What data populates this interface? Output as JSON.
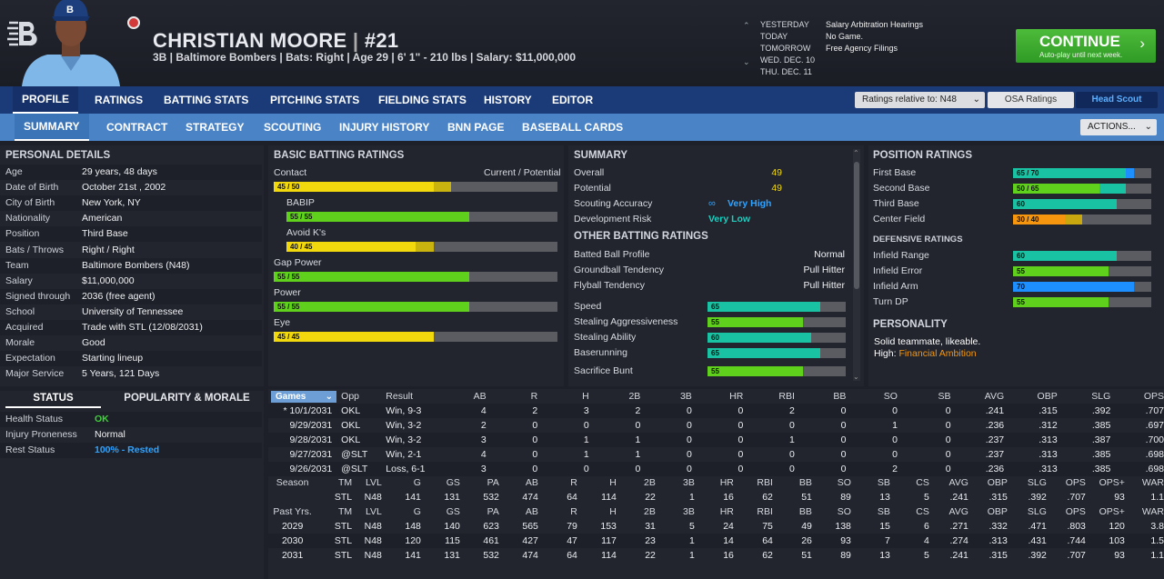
{
  "header": {
    "name": "CHRISTIAN MOORE",
    "sep": "|",
    "number": "#21",
    "subtitle": "3B | Baltimore Bombers  |  Bats: Right  |  Age 29  |  6' 1\" - 210 lbs  |  Salary: $11,000,000"
  },
  "calendar": [
    {
      "day": "YESTERDAY",
      "event": "Salary Arbitration Hearings"
    },
    {
      "day": "TODAY",
      "event": "No Game."
    },
    {
      "day": "TOMORROW",
      "event": "Free Agency Filings"
    },
    {
      "day": "WED. DEC. 10",
      "event": ""
    },
    {
      "day": "THU. DEC. 11",
      "event": ""
    }
  ],
  "continue": {
    "label": "CONTINUE",
    "sub": "Auto-play until next week.",
    "arrow": "›"
  },
  "nav1": [
    "PROFILE",
    "RATINGS",
    "BATTING STATS",
    "PITCHING STATS",
    "FIELDING STATS",
    "HISTORY",
    "EDITOR"
  ],
  "nav1_right": {
    "ratings_select": "Ratings relative to: N48",
    "osa": "OSA Ratings",
    "scout": "Head Scout"
  },
  "nav2": [
    "SUMMARY",
    "CONTRACT",
    "STRATEGY",
    "SCOUTING",
    "INJURY HISTORY",
    "BNN PAGE",
    "BASEBALL CARDS"
  ],
  "actions": "ACTIONS...",
  "personal": {
    "title": "PERSONAL DETAILS",
    "rows": [
      {
        "k": "Age",
        "v": "29 years, 48 days"
      },
      {
        "k": "Date of Birth",
        "v": "October 21st , 2002"
      },
      {
        "k": "City of Birth",
        "v": "New York, NY"
      },
      {
        "k": "Nationality",
        "v": "American"
      },
      {
        "k": "Position",
        "v": "Third Base"
      },
      {
        "k": "Bats / Throws",
        "v": "Right / Right"
      },
      {
        "k": "Team",
        "v": "Baltimore Bombers (N48)"
      },
      {
        "k": "Salary",
        "v": "$11,000,000"
      },
      {
        "k": "Signed through",
        "v": "2036 (free agent)"
      },
      {
        "k": "School",
        "v": "University of Tennessee"
      },
      {
        "k": "Acquired",
        "v": "Trade with STL (12/08/2031)"
      },
      {
        "k": "Morale",
        "v": "Good"
      },
      {
        "k": "Expectation",
        "v": "Starting lineup"
      },
      {
        "k": "Major Service",
        "v": "5 Years, 121 Days"
      }
    ]
  },
  "status": {
    "tab_status": "STATUS",
    "tab_pop": "POPULARITY & MORALE",
    "rows": [
      {
        "k": "Health Status",
        "v": "OK",
        "c": "#3fd13a"
      },
      {
        "k": "Injury Proneness",
        "v": "Normal",
        "c": "#f0f1f4"
      },
      {
        "k": "Rest Status",
        "v": "100% - Rested",
        "c": "#2fa3ff"
      }
    ]
  },
  "batting": {
    "title": "BASIC BATTING RATINGS",
    "cp": "Current / Potential",
    "rows": [
      {
        "name": "Contact",
        "label": "45 / 50",
        "cur": 45,
        "pot": 50,
        "indent": false
      },
      {
        "name": "BABIP",
        "label": "55 / 55",
        "cur": 55,
        "pot": 55,
        "indent": true
      },
      {
        "name": "Avoid K's",
        "label": "40 / 45",
        "cur": 40,
        "pot": 45,
        "indent": true
      },
      {
        "name": "Gap Power",
        "label": "55 / 55",
        "cur": 55,
        "pot": 55,
        "indent": false
      },
      {
        "name": "Power",
        "label": "55 / 55",
        "cur": 55,
        "pot": 55,
        "indent": false
      },
      {
        "name": "Eye",
        "label": "45 / 45",
        "cur": 45,
        "pot": 45,
        "indent": false
      }
    ]
  },
  "summary": {
    "title": "SUMMARY",
    "overall_k": "Overall",
    "overall": "49",
    "potential_k": "Potential",
    "potential": "49",
    "scout_k": "Scouting Accuracy",
    "scout": "Very High",
    "risk_k": "Development Risk",
    "risk": "Very Low",
    "other_title": "OTHER BATTING RATINGS",
    "other": [
      {
        "k": "Batted Ball Profile",
        "v": "Normal"
      },
      {
        "k": "Groundball Tendency",
        "v": "Pull Hitter"
      },
      {
        "k": "Flyball Tendency",
        "v": "Pull Hitter"
      }
    ],
    "speed": [
      {
        "k": "Speed",
        "v": 65
      },
      {
        "k": "Stealing Aggressiveness",
        "v": 55
      },
      {
        "k": "Stealing Ability",
        "v": 60
      },
      {
        "k": "Baserunning",
        "v": 65
      },
      {
        "k": "Sacrifice Bunt",
        "v": 55
      }
    ]
  },
  "position": {
    "title": "POSITION RATINGS",
    "rows": [
      {
        "k": "First Base",
        "label": "65 / 70",
        "cur": 65,
        "pot": 70
      },
      {
        "k": "Second Base",
        "label": "50 / 65",
        "cur": 50,
        "pot": 65
      },
      {
        "k": "Third Base",
        "label": "60",
        "cur": 60,
        "pot": 60
      },
      {
        "k": "Center Field",
        "label": "30 / 40",
        "cur": 30,
        "pot": 40
      }
    ],
    "def_title": "DEFENSIVE RATINGS",
    "def": [
      {
        "k": "Infield Range",
        "v": 60
      },
      {
        "k": "Infield Error",
        "v": 55
      },
      {
        "k": "Infield Arm",
        "v": 70
      },
      {
        "k": "Turn DP",
        "v": 55
      }
    ],
    "pers_title": "PERSONALITY",
    "pers1": "Solid teammate, likeable.",
    "pers2_k": "High:",
    "pers2_v": "Financial Ambition"
  },
  "colors": {
    "yellow": "#f2d90d",
    "green": "#5fd11c",
    "teal": "#19c2a3",
    "orange": "#f5960e",
    "blue": "#1e8fff",
    "bar_bg": "#5a5c62"
  },
  "games": {
    "select": "Games",
    "head": [
      "Opp",
      "Result",
      "AB",
      "R",
      "H",
      "2B",
      "3B",
      "HR",
      "RBI",
      "BB",
      "SO",
      "SB",
      "AVG",
      "OBP",
      "SLG",
      "OPS"
    ],
    "rows": [
      [
        "* 10/1/2031",
        "OKL",
        "Win, 9-3",
        "4",
        "2",
        "3",
        "2",
        "0",
        "0",
        "2",
        "0",
        "0",
        "0",
        ".241",
        ".315",
        ".392",
        ".707"
      ],
      [
        "9/29/2031",
        "OKL",
        "Win, 3-2",
        "2",
        "0",
        "0",
        "0",
        "0",
        "0",
        "0",
        "0",
        "1",
        "0",
        ".236",
        ".312",
        ".385",
        ".697"
      ],
      [
        "9/28/2031",
        "OKL",
        "Win, 3-2",
        "3",
        "0",
        "1",
        "1",
        "0",
        "0",
        "1",
        "0",
        "0",
        "0",
        ".237",
        ".313",
        ".387",
        ".700"
      ],
      [
        "9/27/2031",
        "@SLT",
        "Win, 2-1",
        "4",
        "0",
        "1",
        "1",
        "0",
        "0",
        "0",
        "0",
        "0",
        "0",
        ".237",
        ".313",
        ".385",
        ".698"
      ],
      [
        "9/26/2031",
        "@SLT",
        "Loss, 6-1",
        "3",
        "0",
        "0",
        "0",
        "0",
        "0",
        "0",
        "0",
        "2",
        "0",
        ".236",
        ".313",
        ".385",
        ".698"
      ]
    ]
  },
  "season": {
    "head": [
      "Season",
      "TM",
      "LVL",
      "G",
      "GS",
      "PA",
      "AB",
      "R",
      "H",
      "2B",
      "3B",
      "HR",
      "RBI",
      "BB",
      "SO",
      "SB",
      "CS",
      "AVG",
      "OBP",
      "SLG",
      "OPS",
      "OPS+",
      "WAR"
    ],
    "rows": [
      [
        "",
        "STL",
        "N48",
        "141",
        "131",
        "532",
        "474",
        "64",
        "114",
        "22",
        "1",
        "16",
        "62",
        "51",
        "89",
        "13",
        "5",
        ".241",
        ".315",
        ".392",
        ".707",
        "93",
        "1.1"
      ]
    ]
  },
  "past": {
    "head": [
      "Past Yrs.",
      "TM",
      "LVL",
      "G",
      "GS",
      "PA",
      "AB",
      "R",
      "H",
      "2B",
      "3B",
      "HR",
      "RBI",
      "BB",
      "SO",
      "SB",
      "CS",
      "AVG",
      "OBP",
      "SLG",
      "OPS",
      "OPS+",
      "WAR"
    ],
    "rows": [
      [
        "2029",
        "STL",
        "N48",
        "148",
        "140",
        "623",
        "565",
        "79",
        "153",
        "31",
        "5",
        "24",
        "75",
        "49",
        "138",
        "15",
        "6",
        ".271",
        ".332",
        ".471",
        ".803",
        "120",
        "3.8"
      ],
      [
        "2030",
        "STL",
        "N48",
        "120",
        "115",
        "461",
        "427",
        "47",
        "117",
        "23",
        "1",
        "14",
        "64",
        "26",
        "93",
        "7",
        "4",
        ".274",
        ".313",
        ".431",
        ".744",
        "103",
        "1.5"
      ],
      [
        "2031",
        "STL",
        "N48",
        "141",
        "131",
        "532",
        "474",
        "64",
        "114",
        "22",
        "1",
        "16",
        "62",
        "51",
        "89",
        "13",
        "5",
        ".241",
        ".315",
        ".392",
        ".707",
        "93",
        "1.1"
      ]
    ]
  }
}
